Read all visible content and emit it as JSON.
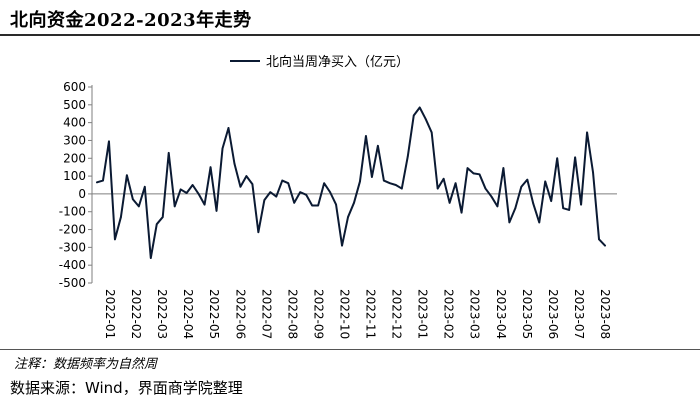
{
  "header": {
    "title": "北向资金2022-2023年走势"
  },
  "footer": {
    "note": "注释：数据频率为自然周",
    "source": "数据来源：Wind，界面商学院整理"
  },
  "colors": {
    "series": "#0b1a33",
    "rule": "#2a2a2a"
  },
  "chart_data": {
    "type": "line",
    "title": "北向资金2022-2023年走势",
    "xlabel": "",
    "ylabel": "",
    "ylim": [
      -500,
      600
    ],
    "y_ticks": [
      600,
      500,
      400,
      300,
      200,
      100,
      0,
      -100,
      -200,
      -300,
      -400,
      -500
    ],
    "x_tick_labels": [
      "2022-01",
      "2022-02",
      "2022-03",
      "2022-04",
      "2022-05",
      "2022-06",
      "2022-07",
      "2022-08",
      "2022-09",
      "2022-10",
      "2022-11",
      "2022-12",
      "2023-01",
      "2023-02",
      "2023-03",
      "2023-04",
      "2023-05",
      "2023-06",
      "2023-07",
      "2023-08"
    ],
    "legend": {
      "position": "top-center"
    },
    "grid": false,
    "series": [
      {
        "name": "北向当周净买入（亿元）",
        "values": [
          65,
          75,
          295,
          -255,
          -130,
          105,
          -30,
          -70,
          40,
          -360,
          -170,
          -130,
          230,
          -70,
          25,
          5,
          50,
          0,
          -60,
          150,
          -95,
          255,
          370,
          170,
          40,
          100,
          55,
          -215,
          -35,
          10,
          -15,
          75,
          60,
          -50,
          10,
          -5,
          -65,
          -65,
          60,
          10,
          -60,
          -290,
          -130,
          -50,
          70,
          325,
          95,
          270,
          75,
          60,
          50,
          30,
          210,
          440,
          485,
          420,
          345,
          30,
          85,
          -50,
          60,
          -105,
          145,
          115,
          110,
          30,
          -15,
          -70,
          145,
          -160,
          -80,
          40,
          80,
          -55,
          -160,
          70,
          -40,
          200,
          -80,
          -90,
          205,
          -60,
          345,
          120,
          -255,
          -290
        ]
      }
    ]
  }
}
